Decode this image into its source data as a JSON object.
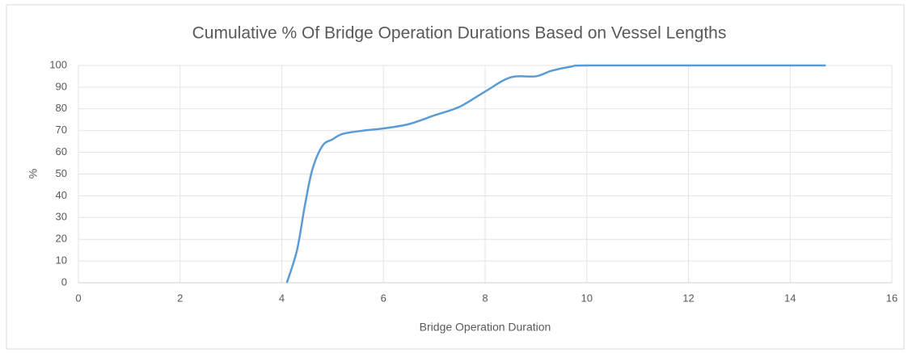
{
  "chart_data": {
    "type": "line",
    "title": "Cumulative % Of Bridge Operation Durations Based on Vessel Lengths",
    "x_label": "Bridge Operation Duration",
    "y_label": "%",
    "series": [
      {
        "name": "Cumulative %",
        "color": "#5b9bd5",
        "x": [
          4.1,
          4.3,
          4.45,
          4.6,
          4.8,
          5.0,
          5.2,
          5.6,
          6.0,
          6.5,
          7.0,
          7.5,
          8.0,
          8.5,
          9.0,
          9.3,
          9.7,
          10,
          12,
          14.7
        ],
        "values": [
          0,
          15,
          35,
          52,
          63,
          66,
          68.5,
          70,
          71,
          73,
          77,
          81,
          88,
          94.5,
          95,
          97.5,
          99.5,
          100,
          100,
          100
        ]
      }
    ],
    "xlim": [
      0,
      16
    ],
    "xticks": [
      0,
      2,
      4,
      6,
      8,
      10,
      12,
      14,
      16
    ],
    "ylim": [
      0,
      100
    ],
    "yticks": [
      0,
      10,
      20,
      30,
      40,
      50,
      60,
      70,
      80,
      90,
      100
    ],
    "grid": true
  }
}
